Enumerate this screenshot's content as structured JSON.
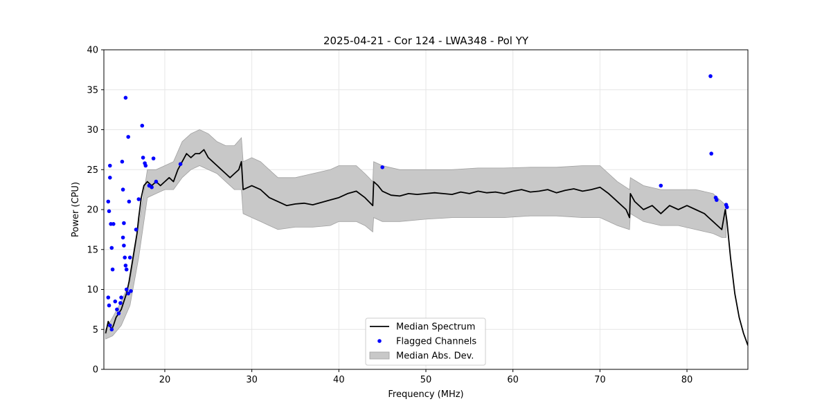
{
  "chart_data": {
    "type": "line",
    "title": "2025-04-21 - Cor 124 - LWA348 - Pol YY",
    "xlabel": "Frequency (MHz)",
    "ylabel": "Power (CPU)",
    "xlim": [
      13,
      87
    ],
    "ylim": [
      0,
      40
    ],
    "xticks": [
      20,
      30,
      40,
      50,
      60,
      70,
      80
    ],
    "yticks": [
      0,
      5,
      10,
      15,
      20,
      25,
      30,
      35,
      40
    ],
    "grid": true,
    "legend_position": "bottom-center",
    "colors": {
      "median": "#000000",
      "flagged": "#0000ff",
      "band": "#c8c8c8",
      "band_edge": "#a0a0a0"
    },
    "legend": [
      {
        "label": "Median Spectrum",
        "kind": "line"
      },
      {
        "label": "Flagged Channels",
        "kind": "marker"
      },
      {
        "label": "Median Abs. Dev.",
        "kind": "patch"
      }
    ],
    "series": [
      {
        "name": "Median Spectrum",
        "x": [
          13.2,
          13.5,
          13.7,
          13.9,
          14.1,
          14.4,
          14.7,
          15.0,
          15.3,
          15.6,
          15.9,
          16.2,
          16.5,
          16.8,
          17.0,
          17.3,
          17.6,
          18.0,
          18.5,
          19.0,
          19.5,
          20.0,
          20.5,
          21.0,
          21.5,
          22.0,
          22.5,
          23.0,
          23.5,
          24.0,
          24.5,
          25.0,
          25.5,
          26.0,
          26.5,
          27.0,
          27.5,
          28.0,
          28.5,
          28.8,
          29.0,
          30.0,
          31.0,
          32.0,
          33.0,
          34.0,
          35.0,
          36.0,
          37.0,
          38.0,
          39.0,
          40.0,
          41.0,
          42.0,
          43.0,
          43.9,
          44.0,
          44.5,
          45.0,
          46.0,
          47.0,
          48.0,
          49.0,
          50.0,
          51.0,
          52.0,
          53.0,
          54.0,
          55.0,
          56.0,
          57.0,
          58.0,
          59.0,
          60.0,
          61.0,
          62.0,
          63.0,
          64.0,
          65.0,
          66.0,
          67.0,
          68.0,
          69.0,
          70.0,
          71.0,
          72.0,
          73.0,
          73.4,
          73.5,
          74.0,
          75.0,
          76.0,
          77.0,
          78.0,
          79.0,
          80.0,
          81.0,
          82.0,
          82.5,
          83.0,
          83.5,
          84.0,
          84.4,
          84.6,
          85.0,
          85.5,
          86.0,
          86.5,
          87.0
        ],
        "y": [
          4.5,
          6.0,
          5.5,
          5.0,
          5.5,
          6.5,
          7.0,
          7.5,
          8.5,
          9.5,
          11.0,
          13.0,
          15.0,
          17.0,
          19.0,
          21.5,
          23.0,
          23.5,
          23.0,
          23.5,
          23.0,
          23.5,
          24.0,
          23.5,
          25.0,
          26.0,
          27.0,
          26.5,
          27.0,
          27.0,
          27.5,
          26.5,
          26.0,
          25.5,
          25.0,
          24.5,
          24.0,
          24.5,
          25.0,
          26.0,
          22.5,
          23.0,
          22.5,
          21.5,
          21.0,
          20.5,
          20.7,
          20.8,
          20.6,
          20.9,
          21.2,
          21.5,
          22.0,
          22.3,
          21.5,
          20.5,
          23.5,
          23.0,
          22.3,
          21.8,
          21.7,
          22.0,
          21.9,
          22.0,
          22.1,
          22.0,
          21.9,
          22.2,
          22.0,
          22.3,
          22.1,
          22.2,
          22.0,
          22.3,
          22.5,
          22.2,
          22.3,
          22.5,
          22.1,
          22.4,
          22.6,
          22.3,
          22.5,
          22.8,
          22.0,
          21.0,
          20.0,
          19.0,
          22.0,
          21.0,
          20.0,
          20.5,
          19.5,
          20.5,
          20.0,
          20.5,
          20.0,
          19.5,
          19.0,
          18.5,
          18.0,
          17.5,
          20.0,
          18.5,
          14.0,
          9.5,
          6.5,
          4.5,
          3.0
        ]
      },
      {
        "name": "Median Abs. Dev.",
        "x": [
          13.2,
          14.0,
          15.0,
          16.0,
          17.0,
          18.0,
          19.0,
          20.0,
          21.0,
          22.0,
          23.0,
          24.0,
          25.0,
          26.0,
          27.0,
          28.0,
          28.8,
          29.0,
          30.0,
          31.0,
          32.0,
          33.0,
          35.0,
          37.0,
          39.0,
          40.0,
          41.0,
          42.0,
          43.0,
          43.9,
          44.0,
          45.0,
          47.0,
          50.0,
          53.0,
          56.0,
          59.0,
          62.0,
          65.0,
          68.0,
          70.0,
          71.0,
          72.0,
          73.4,
          73.5,
          75.0,
          77.0,
          79.0,
          81.0,
          83.0,
          84.0,
          84.5
        ],
        "lower": [
          3.8,
          4.2,
          5.5,
          8.0,
          14.0,
          21.5,
          22.0,
          22.5,
          22.5,
          24.0,
          25.0,
          25.5,
          25.0,
          24.5,
          23.5,
          22.5,
          22.5,
          19.5,
          19.0,
          18.5,
          18.0,
          17.5,
          17.8,
          17.8,
          18.0,
          18.5,
          18.5,
          18.5,
          18.0,
          17.2,
          19.0,
          18.5,
          18.5,
          18.8,
          19.0,
          19.0,
          19.0,
          19.2,
          19.2,
          19.0,
          19.0,
          18.5,
          18.0,
          17.5,
          19.5,
          18.5,
          18.0,
          18.0,
          17.5,
          17.0,
          16.5,
          16.5
        ],
        "upper": [
          5.0,
          6.5,
          8.5,
          11.0,
          18.0,
          25.0,
          25.0,
          25.5,
          26.0,
          28.5,
          29.5,
          30.0,
          29.5,
          28.5,
          28.0,
          28.0,
          29.0,
          26.0,
          26.5,
          26.0,
          25.0,
          24.0,
          24.0,
          24.5,
          25.0,
          25.5,
          25.5,
          25.5,
          24.5,
          23.5,
          26.0,
          25.5,
          25.0,
          25.0,
          25.0,
          25.2,
          25.2,
          25.3,
          25.3,
          25.5,
          25.5,
          24.5,
          23.5,
          22.5,
          24.0,
          23.0,
          22.5,
          22.5,
          22.5,
          22.0,
          21.0,
          20.5
        ]
      },
      {
        "name": "Flagged Channels",
        "points": [
          [
            13.5,
            21.0
          ],
          [
            13.6,
            19.8
          ],
          [
            13.7,
            25.5
          ],
          [
            13.7,
            24.0
          ],
          [
            13.8,
            18.2
          ],
          [
            13.9,
            15.2
          ],
          [
            14.0,
            12.5
          ],
          [
            14.1,
            18.2
          ],
          [
            13.5,
            9.0
          ],
          [
            13.6,
            8.0
          ],
          [
            13.7,
            5.5
          ],
          [
            13.9,
            5.0
          ],
          [
            14.3,
            8.5
          ],
          [
            14.5,
            7.5
          ],
          [
            14.7,
            7.0
          ],
          [
            14.9,
            8.3
          ],
          [
            15.0,
            9.0
          ],
          [
            15.1,
            26.0
          ],
          [
            15.2,
            22.5
          ],
          [
            15.3,
            18.3
          ],
          [
            15.2,
            16.5
          ],
          [
            15.3,
            15.5
          ],
          [
            15.4,
            14.0
          ],
          [
            15.5,
            13.0
          ],
          [
            15.6,
            12.5
          ],
          [
            15.5,
            34.0
          ],
          [
            15.8,
            29.1
          ],
          [
            15.9,
            21.0
          ],
          [
            16.0,
            14.0
          ],
          [
            15.6,
            10.0
          ],
          [
            15.8,
            9.5
          ],
          [
            16.1,
            9.8
          ],
          [
            16.7,
            17.5
          ],
          [
            17.0,
            21.3
          ],
          [
            17.4,
            30.5
          ],
          [
            17.5,
            26.5
          ],
          [
            17.7,
            25.8
          ],
          [
            17.8,
            25.5
          ],
          [
            18.2,
            23.0
          ],
          [
            18.5,
            22.8
          ],
          [
            18.7,
            26.4
          ],
          [
            19.0,
            23.5
          ],
          [
            21.8,
            25.7
          ],
          [
            45.0,
            25.3
          ],
          [
            77.0,
            23.0
          ],
          [
            82.7,
            36.7
          ],
          [
            82.8,
            27.0
          ],
          [
            83.3,
            21.5
          ],
          [
            83.4,
            21.2
          ],
          [
            84.5,
            20.6
          ],
          [
            84.6,
            20.3
          ]
        ]
      }
    ]
  }
}
